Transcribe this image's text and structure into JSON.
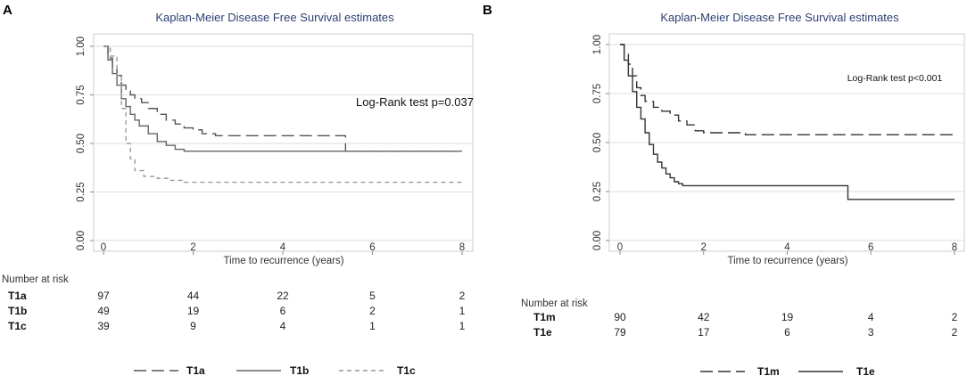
{
  "chart_data": [
    {
      "type": "line",
      "panel": "A",
      "title": "Kaplan-Meier Disease Free Survival estimates",
      "xlabel": "Time to recurrence (years)",
      "ylabel": "",
      "xlim": [
        0,
        8
      ],
      "ylim": [
        0,
        1
      ],
      "x_ticks": [
        "0",
        "2",
        "4",
        "6",
        "8"
      ],
      "y_ticks": [
        "0.00",
        "0.25",
        "0.50",
        "0.75",
        "1.00"
      ],
      "annotation": "Log-Rank test p=0.037",
      "series": [
        {
          "name": "T1a",
          "style": "long-dash",
          "color": "#555555",
          "x": [
            0,
            0.1,
            0.2,
            0.3,
            0.4,
            0.5,
            0.6,
            0.7,
            0.85,
            1.0,
            1.2,
            1.4,
            1.6,
            1.8,
            2.0,
            2.2,
            2.5,
            5.4,
            8.0
          ],
          "y": [
            1.0,
            0.94,
            0.89,
            0.85,
            0.8,
            0.77,
            0.75,
            0.73,
            0.71,
            0.68,
            0.65,
            0.62,
            0.6,
            0.58,
            0.57,
            0.55,
            0.54,
            0.46,
            0.46
          ]
        },
        {
          "name": "T1b",
          "style": "solid",
          "color": "#666666",
          "x": [
            0,
            0.1,
            0.2,
            0.3,
            0.4,
            0.5,
            0.6,
            0.7,
            0.8,
            1.0,
            1.2,
            1.4,
            1.6,
            1.8,
            8.0
          ],
          "y": [
            1.0,
            0.93,
            0.86,
            0.8,
            0.73,
            0.69,
            0.65,
            0.62,
            0.59,
            0.55,
            0.51,
            0.49,
            0.47,
            0.46,
            0.46
          ]
        },
        {
          "name": "T1c",
          "style": "short-dash",
          "color": "#999999",
          "x": [
            0,
            0.15,
            0.3,
            0.4,
            0.5,
            0.6,
            0.7,
            0.9,
            1.2,
            1.5,
            1.8,
            8.0
          ],
          "y": [
            1.0,
            0.95,
            0.85,
            0.68,
            0.5,
            0.42,
            0.36,
            0.33,
            0.32,
            0.31,
            0.3,
            0.3
          ]
        }
      ],
      "risk_table": {
        "header": "Number at risk",
        "rows": [
          {
            "group": "T1a",
            "values": [
              "97",
              "44",
              "22",
              "5",
              "2"
            ]
          },
          {
            "group": "T1b",
            "values": [
              "49",
              "19",
              "6",
              "2",
              "1"
            ]
          },
          {
            "group": "T1c",
            "values": [
              "39",
              "9",
              "4",
              "1",
              "1"
            ]
          }
        ]
      },
      "legend": [
        "T1a",
        "T1b",
        "T1c"
      ],
      "legend_position": "bottom"
    },
    {
      "type": "line",
      "panel": "B",
      "title": "Kaplan-Meier Disease Free Survival estimates",
      "xlabel": "Time to recurrence (years)",
      "ylabel": "",
      "xlim": [
        0,
        8
      ],
      "ylim": [
        0,
        1
      ],
      "x_ticks": [
        "0",
        "2",
        "4",
        "6",
        "8"
      ],
      "y_ticks": [
        "0.00",
        "0.25",
        "0.50",
        "0.75",
        "1.00"
      ],
      "annotation": "Log-Rank test p<0.001",
      "series": [
        {
          "name": "T1m",
          "style": "long-dash",
          "color": "#333333",
          "x": [
            0,
            0.1,
            0.2,
            0.3,
            0.4,
            0.5,
            0.6,
            0.8,
            1.0,
            1.2,
            1.4,
            1.6,
            1.8,
            2.0,
            2.5,
            3.0,
            8.0
          ],
          "y": [
            1.0,
            0.95,
            0.9,
            0.84,
            0.78,
            0.74,
            0.71,
            0.68,
            0.66,
            0.64,
            0.61,
            0.59,
            0.56,
            0.55,
            0.55,
            0.54,
            0.54
          ]
        },
        {
          "name": "T1e",
          "style": "solid",
          "color": "#333333",
          "x": [
            0,
            0.1,
            0.2,
            0.3,
            0.4,
            0.5,
            0.6,
            0.7,
            0.8,
            0.9,
            1.0,
            1.1,
            1.2,
            1.3,
            1.4,
            1.5,
            5.45,
            8.0
          ],
          "y": [
            1.0,
            0.92,
            0.84,
            0.76,
            0.68,
            0.62,
            0.55,
            0.49,
            0.44,
            0.4,
            0.37,
            0.34,
            0.32,
            0.3,
            0.29,
            0.28,
            0.21,
            0.21
          ]
        }
      ],
      "risk_table": {
        "header": "Number at risk",
        "rows": [
          {
            "group": "T1m",
            "values": [
              "90",
              "42",
              "19",
              "4",
              "2"
            ]
          },
          {
            "group": "T1e",
            "values": [
              "79",
              "17",
              "6",
              "3",
              "2"
            ]
          }
        ]
      },
      "legend": [
        "T1m",
        "T1e"
      ],
      "legend_position": "bottom"
    }
  ]
}
